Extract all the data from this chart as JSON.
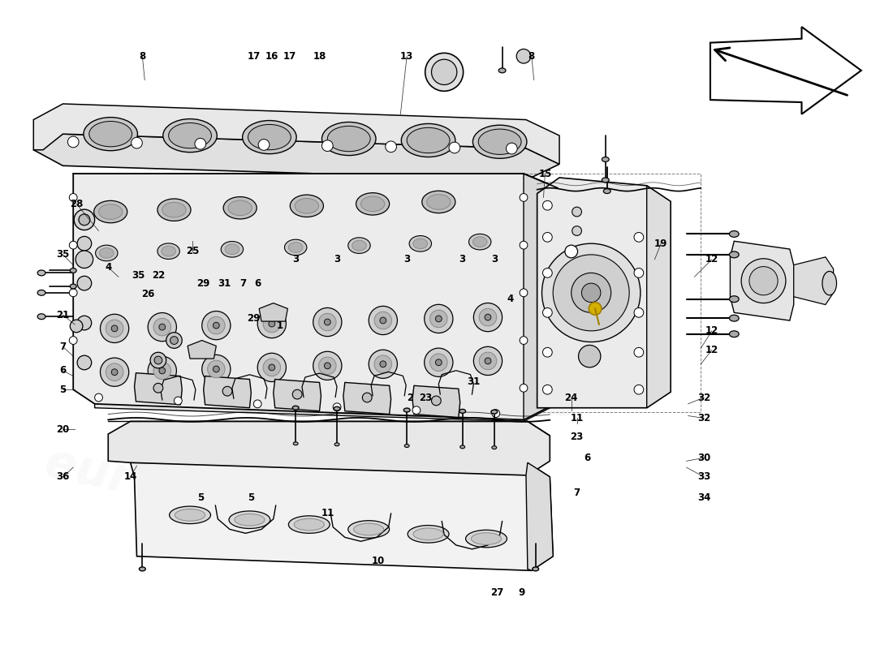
{
  "bg": "#ffffff",
  "lc": "#000000",
  "labels": [
    [
      "8",
      155,
      62
    ],
    [
      "17",
      295,
      62
    ],
    [
      "16",
      318,
      62
    ],
    [
      "17",
      340,
      62
    ],
    [
      "18",
      378,
      62
    ],
    [
      "13",
      488,
      62
    ],
    [
      "8",
      645,
      62
    ],
    [
      "28",
      72,
      248
    ],
    [
      "15",
      662,
      210
    ],
    [
      "19",
      808,
      298
    ],
    [
      "12",
      872,
      318
    ],
    [
      "12",
      872,
      408
    ],
    [
      "12",
      872,
      432
    ],
    [
      "25",
      218,
      308
    ],
    [
      "35",
      55,
      312
    ],
    [
      "4",
      112,
      328
    ],
    [
      "35",
      150,
      338
    ],
    [
      "22",
      175,
      338
    ],
    [
      "26",
      162,
      362
    ],
    [
      "29",
      232,
      348
    ],
    [
      "31",
      258,
      348
    ],
    [
      "7",
      282,
      348
    ],
    [
      "6",
      300,
      348
    ],
    [
      "3",
      348,
      318
    ],
    [
      "3",
      400,
      318
    ],
    [
      "3",
      488,
      318
    ],
    [
      "3",
      558,
      318
    ],
    [
      "3",
      598,
      318
    ],
    [
      "29",
      295,
      392
    ],
    [
      "1",
      328,
      402
    ],
    [
      "4",
      618,
      368
    ],
    [
      "21",
      55,
      388
    ],
    [
      "7",
      55,
      428
    ],
    [
      "6",
      55,
      458
    ],
    [
      "5",
      55,
      482
    ],
    [
      "20",
      55,
      532
    ],
    [
      "36",
      55,
      592
    ],
    [
      "14",
      140,
      592
    ],
    [
      "5",
      228,
      618
    ],
    [
      "5",
      292,
      618
    ],
    [
      "11",
      388,
      638
    ],
    [
      "10",
      452,
      698
    ],
    [
      "2",
      492,
      492
    ],
    [
      "23",
      512,
      492
    ],
    [
      "31",
      572,
      472
    ],
    [
      "24",
      695,
      492
    ],
    [
      "11",
      702,
      518
    ],
    [
      "23",
      702,
      542
    ],
    [
      "6",
      715,
      568
    ],
    [
      "7",
      702,
      612
    ],
    [
      "27",
      602,
      738
    ],
    [
      "9",
      632,
      738
    ],
    [
      "30",
      862,
      568
    ],
    [
      "32",
      862,
      492
    ],
    [
      "32",
      862,
      518
    ],
    [
      "33",
      862,
      592
    ],
    [
      "34",
      862,
      618
    ]
  ]
}
